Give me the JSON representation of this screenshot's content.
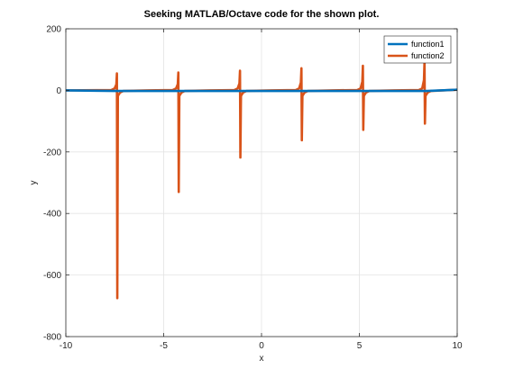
{
  "chart_data": {
    "type": "line",
    "title": "Seeking MATLAB/Octave code for the shown plot.",
    "xlabel": "x",
    "ylabel": "y",
    "xlim": [
      -10,
      10
    ],
    "ylim": [
      -800,
      200
    ],
    "xticks": [
      -10,
      -5,
      0,
      5,
      10
    ],
    "yticks": [
      -800,
      -600,
      -400,
      -200,
      0,
      200
    ],
    "xtick_labels": [
      "-10",
      "-5",
      "0",
      "5",
      "10"
    ],
    "ytick_labels": [
      "-800",
      "-600",
      "-400",
      "-200",
      "0",
      "200"
    ],
    "grid": true,
    "legend_position": "top-right",
    "series": [
      {
        "name": "function1",
        "color": "#0072BD",
        "points": [
          [
            -10,
            0
          ],
          [
            -7.35,
            -2
          ],
          [
            -7.3,
            -2
          ],
          [
            -4.2,
            -2
          ],
          [
            -4.15,
            -2
          ],
          [
            -1.05,
            -2
          ],
          [
            -1.0,
            -2
          ],
          [
            2.1,
            -2
          ],
          [
            2.15,
            -2
          ],
          [
            5.25,
            -2
          ],
          [
            5.3,
            -2
          ],
          [
            8.4,
            -2
          ],
          [
            8.45,
            -2
          ],
          [
            10,
            2
          ]
        ]
      },
      {
        "name": "function2",
        "color": "#D95319",
        "spikes": [
          {
            "x": -7.37,
            "upper": 55,
            "lower": -675
          },
          {
            "x": -4.23,
            "upper": 58,
            "lower": -330
          },
          {
            "x": -1.08,
            "upper": 64,
            "lower": -218
          },
          {
            "x": 2.06,
            "upper": 72,
            "lower": -162
          },
          {
            "x": 5.2,
            "upper": 80,
            "lower": -128
          },
          {
            "x": 8.35,
            "upper": 95,
            "lower": -108
          }
        ]
      }
    ]
  }
}
